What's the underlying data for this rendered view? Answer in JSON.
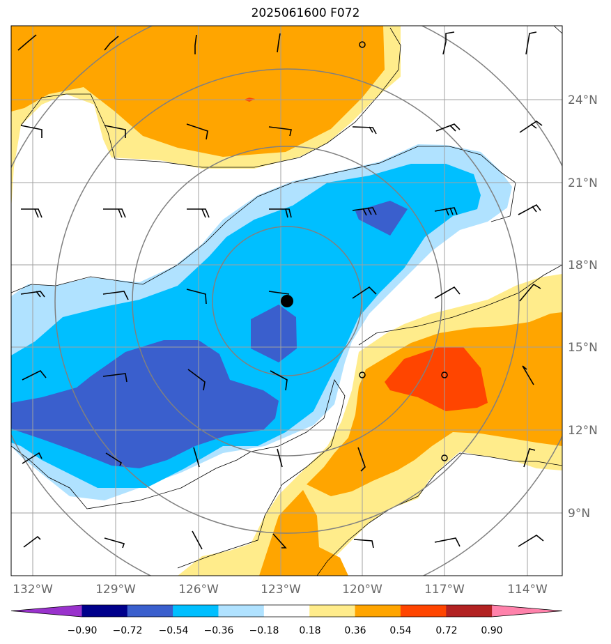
{
  "title": "2025061600 F072",
  "lat_labels": [
    "24°N",
    "21°N",
    "18°N",
    "15°N",
    "12°N",
    "9°N"
  ],
  "lon_labels": [
    "132°W",
    "129°W",
    "126°W",
    "123°W",
    "120°W",
    "117°W",
    "114°W"
  ],
  "colorbar": {
    "ticks": [
      "−0.90",
      "−0.72",
      "−0.54",
      "−0.36",
      "−0.18",
      "0.18",
      "0.36",
      "0.54",
      "0.72",
      "0.90"
    ],
    "colors": [
      "#9932cc",
      "#00008b",
      "#3a5fcd",
      "#00bfff",
      "#b0e2ff",
      "#ffffff",
      "#ffec8b",
      "#ffa500",
      "#ff4500",
      "#b22222",
      "#ff82ab"
    ]
  },
  "storm_center": {
    "lat": 16.7,
    "lon": -122.8
  },
  "fill_colors": {
    "light_yellow": "#ffec8b",
    "orange": "#ffa500",
    "red_orange": "#ff4500",
    "light_blue": "#b0e2ff",
    "cyan": "#00bfff",
    "blue": "#3a5fcd"
  }
}
